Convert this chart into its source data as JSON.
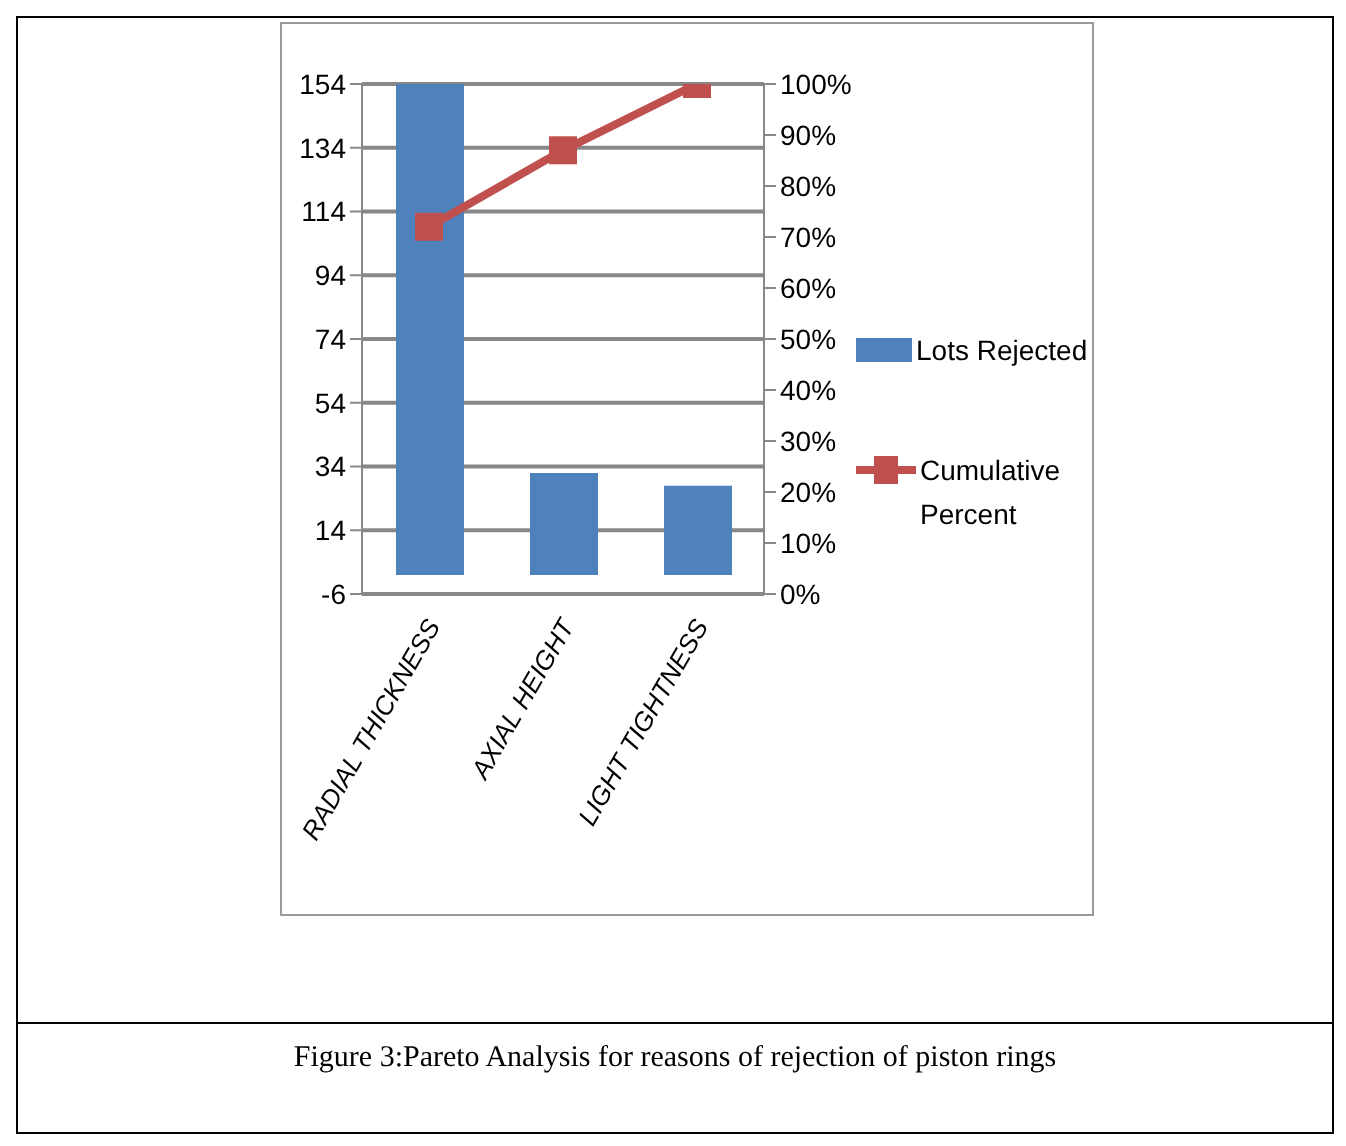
{
  "chart_data": {
    "type": "bar",
    "categories": [
      "RADIAL THICKNESS",
      "AXIAL HEIGHT",
      "LIGHT TIGHTNESS"
    ],
    "series": [
      {
        "name": "Lots Rejected",
        "color": "#4f81bd",
        "values": [
          154,
          32,
          28
        ]
      },
      {
        "name": "Cumulative Percent",
        "type": "line",
        "axis": "y2",
        "color": "#c0504d",
        "marker": "square",
        "values": [
          72,
          87,
          100
        ]
      }
    ],
    "ylim": [
      -6,
      154
    ],
    "yticks": [
      -6,
      14,
      34,
      54,
      74,
      94,
      114,
      134,
      154
    ],
    "y2lim": [
      0,
      100
    ],
    "y2ticks": [
      {
        "value": 0,
        "label": "0%"
      },
      {
        "value": 10,
        "label": "10%"
      },
      {
        "value": 20,
        "label": "20%"
      },
      {
        "value": 30,
        "label": "30%"
      },
      {
        "value": 40,
        "label": "40%"
      },
      {
        "value": 50,
        "label": "50%"
      },
      {
        "value": 60,
        "label": "60%"
      },
      {
        "value": 70,
        "label": "70%"
      },
      {
        "value": 80,
        "label": "80%"
      },
      {
        "value": 90,
        "label": "90%"
      },
      {
        "value": 100,
        "label": "100%"
      }
    ],
    "grid": "y",
    "legend": "right",
    "annotations": [
      "Figure 3:Pareto Analysis for reasons of rejection of piston rings"
    ]
  }
}
